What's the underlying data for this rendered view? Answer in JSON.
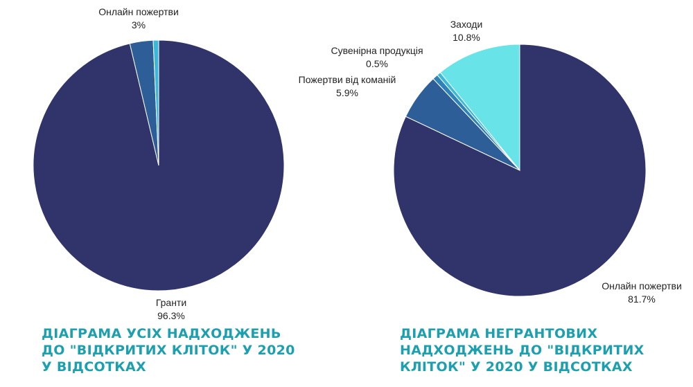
{
  "colors": {
    "caption": "#1c9fae"
  },
  "chart_data": [
    {
      "type": "pie",
      "title": "ДІАГРАМА УСІХ НАДХОДЖЕНЬ ДО \"ВІДКРИТИХ КЛІТОК\" У 2020 У ВІДСОТКАХ",
      "slices": [
        {
          "name": "Гранти",
          "value": 96.3,
          "label": "96.3%",
          "color": "#30346b"
        },
        {
          "name": "Онлайн пожертви",
          "value": 3,
          "label": "3%",
          "color": "#2e5e98"
        },
        {
          "name": "",
          "value": 0.7,
          "label": "",
          "color": "#3bb8d8"
        }
      ]
    },
    {
      "type": "pie",
      "title": "ДІАГРАМА  НЕГРАНТОВИХ НАДХОДЖЕНЬ ДО \"ВІДКРИТИХ КЛІТОК\" У 2020 У ВІДСОТКАХ",
      "slices": [
        {
          "name": "Онлайн пожертви",
          "value": 81.7,
          "label": "81.7%",
          "color": "#30346b"
        },
        {
          "name": "Пожертви від команій",
          "value": 5.9,
          "label": "5.9%",
          "color": "#2e5e98"
        },
        {
          "name": "",
          "value": 0.7,
          "label": "",
          "color": "#2f82b8"
        },
        {
          "name": "Сувенірна продукція",
          "value": 0.5,
          "label": "0.5%",
          "color": "#3bb8d8"
        },
        {
          "name": "Заходи",
          "value": 10.8,
          "label": "10.8%",
          "color": "#68e3e8"
        }
      ]
    }
  ]
}
